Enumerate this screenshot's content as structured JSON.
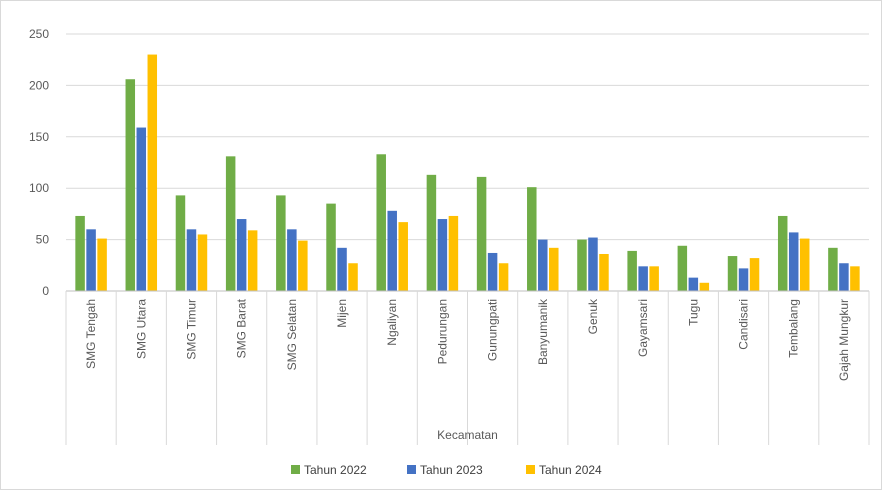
{
  "chart_data": {
    "type": "bar",
    "title": "",
    "xlabel": "Kecamatan",
    "ylabel": "",
    "ylim": [
      0,
      250
    ],
    "yticks": [
      0,
      50,
      100,
      150,
      200,
      250
    ],
    "grid": true,
    "legend_position": "bottom",
    "categories": [
      "SMG Tengah",
      "SMG Utara",
      "SMG Timur",
      "SMG Barat",
      "SMG Selatan",
      "Mijen",
      "Ngaliyan",
      "Pedurungan",
      "Gunungpati",
      "Banyumanik",
      "Genuk",
      "Gayamsari",
      "Tugu",
      "Candisari",
      "Tembalang",
      "Gajah Mungkur"
    ],
    "series": [
      {
        "name": "Tahun 2022",
        "color": "#70AD47",
        "values": [
          73,
          206,
          93,
          131,
          93,
          85,
          133,
          113,
          111,
          101,
          50,
          39,
          44,
          34,
          73,
          42
        ]
      },
      {
        "name": "Tahun 2023",
        "color": "#4472C4",
        "values": [
          60,
          159,
          60,
          70,
          60,
          42,
          78,
          70,
          37,
          50,
          52,
          24,
          13,
          22,
          57,
          27
        ]
      },
      {
        "name": "Tahun 2024",
        "color": "#FFC000",
        "values": [
          51,
          230,
          55,
          59,
          49,
          27,
          67,
          73,
          27,
          42,
          36,
          24,
          8,
          32,
          51,
          24
        ]
      }
    ]
  }
}
